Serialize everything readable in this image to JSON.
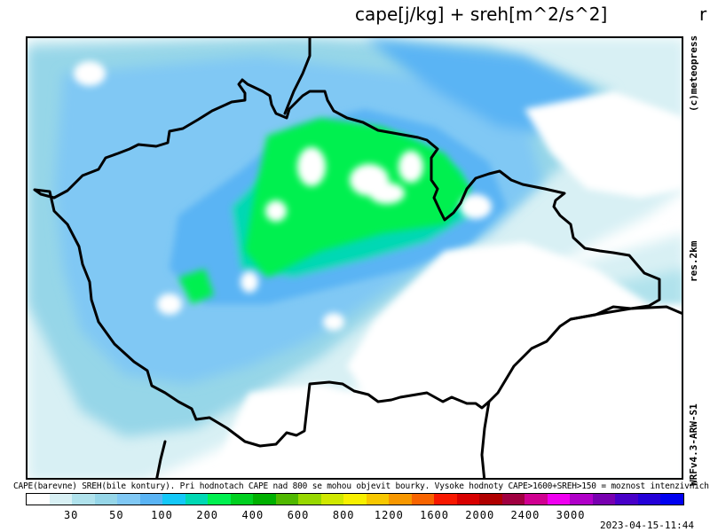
{
  "header": {
    "title": "cape[j/kg] + sreh[m^2/s^2]",
    "title_fragment": "r"
  },
  "side_labels": {
    "copyright": "(c)meteopress",
    "resolution": "res.2km",
    "model": "WRFv4.3-ARW-S1"
  },
  "footer": {
    "note": "CAPE(barevne) SREH(bile kontury). Pri hodnotach CAPE nad 800 se mohou objevit bourky. Vysoke hodnoty CAPE>1600+SREH>150 = moznost intenzivnich bourek",
    "timestamp": "2023-04-15-11:44"
  },
  "legend": {
    "colors": [
      "#ffffff",
      "#d8f0f4",
      "#b0e2ec",
      "#96d6e8",
      "#80c8f4",
      "#5ab4f4",
      "#14c8f8",
      "#00d8b4",
      "#00f050",
      "#00d020",
      "#00b000",
      "#50b800",
      "#98d800",
      "#d0e800",
      "#f8f000",
      "#f8c800",
      "#f89800",
      "#f86400",
      "#f81800",
      "#d80000",
      "#b00000",
      "#a00040",
      "#d00090",
      "#f000f0",
      "#b000c8",
      "#7800b0",
      "#4800c8",
      "#2400d8",
      "#0000f0"
    ],
    "ticks": [
      "30",
      "50",
      "100",
      "200",
      "400",
      "600",
      "800",
      "1200",
      "1600",
      "2000",
      "2400",
      "3000"
    ]
  }
}
